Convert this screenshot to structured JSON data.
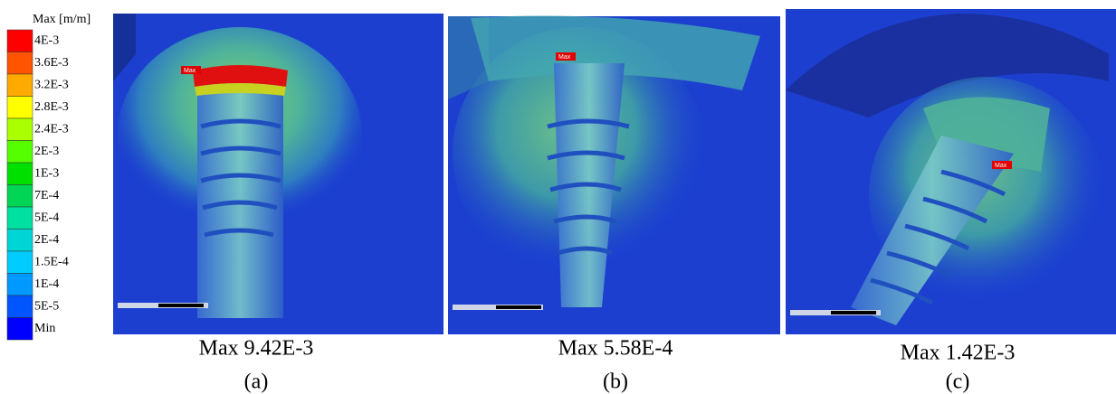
{
  "legend": {
    "title": "Max [m/m]",
    "items": [
      {
        "label": "4E-3",
        "color": "#ff0000"
      },
      {
        "label": "3.6E-3",
        "color": "#ff5500"
      },
      {
        "label": "3.2E-3",
        "color": "#ffaa00"
      },
      {
        "label": "2.8E-3",
        "color": "#ffff00"
      },
      {
        "label": "2.4E-3",
        "color": "#aaff00"
      },
      {
        "label": "2E-3",
        "color": "#55ff00"
      },
      {
        "label": "1E-3",
        "color": "#00e000"
      },
      {
        "label": "7E-4",
        "color": "#00d555"
      },
      {
        "label": "5E-4",
        "color": "#00e0a0"
      },
      {
        "label": "2E-4",
        "color": "#00d5d5"
      },
      {
        "label": "1.5E-4",
        "color": "#00ccff"
      },
      {
        "label": "1E-4",
        "color": "#0099ff"
      },
      {
        "label": "5E-5",
        "color": "#0055ff"
      },
      {
        "label": "Min",
        "color": "#0000ff"
      }
    ]
  },
  "panels": [
    {
      "tag": "Max",
      "caption": "Max 9.42E-3",
      "label": "(a)"
    },
    {
      "tag": "Max",
      "caption": "Max 5.58E-4",
      "label": "(b)"
    },
    {
      "tag": "Max",
      "caption": "Max 1.42E-3",
      "label": "(c)"
    }
  ]
}
